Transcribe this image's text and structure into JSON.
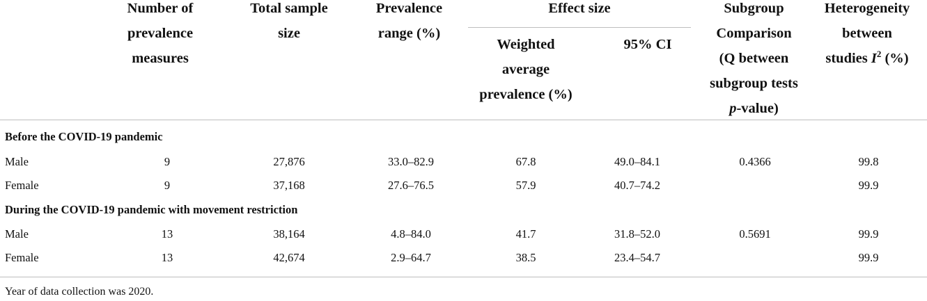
{
  "headers": {
    "num_measures": [
      "Number of",
      "prevalence",
      "measures"
    ],
    "total_sample": [
      "Total sample",
      "size"
    ],
    "prev_range": [
      "Prevalence",
      "range (%)"
    ],
    "effect_size": "Effect size",
    "weighted_avg": [
      "Weighted",
      "average",
      "prevalence (%)"
    ],
    "ci": "95% CI",
    "subgroup": [
      "Subgroup",
      "Comparison",
      "(Q between",
      "subgroup tests"
    ],
    "subgroup_p_italic": "p",
    "subgroup_p_rest": "-value)",
    "heterogeneity": [
      "Heterogeneity",
      "between"
    ],
    "het_studies": "studies ",
    "het_I": "I",
    "het_exp": "2",
    "het_unit": " (%)"
  },
  "sections": [
    {
      "title": "Before the COVID-19 pandemic",
      "rows": [
        {
          "label": "Male",
          "n": "9",
          "size": "27,876",
          "range": "33.0–82.9",
          "avg": "67.8",
          "ci": "49.0–84.1",
          "q": "0.4366",
          "i2": "99.8"
        },
        {
          "label": "Female",
          "n": "9",
          "size": "37,168",
          "range": "27.6–76.5",
          "avg": "57.9",
          "ci": "40.7–74.2",
          "q": "",
          "i2": "99.9"
        }
      ]
    },
    {
      "title": "During the COVID-19 pandemic with movement restriction",
      "rows": [
        {
          "label": "Male",
          "n": "13",
          "size": "38,164",
          "range": "4.8–84.0",
          "avg": "41.7",
          "ci": "31.8–52.0",
          "q": "0.5691",
          "i2": "99.9"
        },
        {
          "label": "Female",
          "n": "13",
          "size": "42,674",
          "range": "2.9–64.7",
          "avg": "38.5",
          "ci": "23.4–54.7",
          "q": "",
          "i2": "99.9"
        }
      ]
    }
  ],
  "footnote": "Year of data collection was 2020."
}
